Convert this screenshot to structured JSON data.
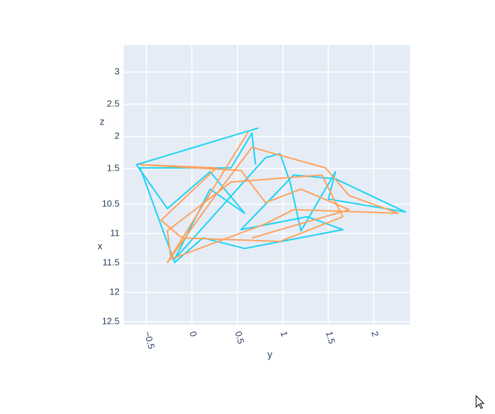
{
  "chart_data": {
    "type": "line3d",
    "x_label": "x",
    "y_label": "y",
    "z_label": "z",
    "xlim": [
      10.2,
      12.55
    ],
    "ylim": [
      -0.75,
      2.4
    ],
    "zlim": [
      1.22,
      3.42
    ],
    "xticks": [
      10.5,
      11,
      11.5,
      12,
      12.5
    ],
    "yticks": [
      {
        "value": -0.5,
        "label": "−0.5"
      },
      0,
      0.5,
      1,
      1.5,
      2
    ],
    "zticks": [
      1.5,
      2,
      2.5,
      3
    ],
    "grid": true,
    "series": [
      {
        "color": "#19d3f3",
        "x": [
          10.43,
          10.43,
          10.88,
          10.43,
          10.96,
          10.55,
          11.74,
          10.43,
          10.43,
          10.43,
          11.26,
          10.43,
          10.72,
          10.9,
          10.94,
          10.43,
          10.43,
          11.24,
          11.02,
          11.24,
          11.56,
          11.38,
          11.8,
          10.43,
          10.43,
          10.43,
          10.43
        ],
        "y": [
          0.73,
          -0.61,
          -0.27,
          0.2,
          0.58,
          0.2,
          -0.19,
          0.81,
          0.97,
          1.08,
          1.2,
          1.58,
          1.5,
          2.2,
          2.35,
          1.58,
          1.12,
          0.54,
          1.27,
          1.66,
          0.58,
          0.12,
          -0.19,
          -0.57,
          0.43,
          0.66,
          0.7
        ],
        "z": [
          2.34,
          1.77,
          1.5,
          1.66,
          1.5,
          1.5,
          1.5,
          1.88,
          1.94,
          1.5,
          1.5,
          1.66,
          1.5,
          1.5,
          1.5,
          1.55,
          1.61,
          1.5,
          1.5,
          1.5,
          1.5,
          1.5,
          1.5,
          1.72,
          1.72,
          2.26,
          1.77
        ]
      },
      {
        "color": "#ffa15a",
        "x": [
          10.43,
          11.8,
          10.78,
          10.43,
          10.43,
          10.66,
          10.96,
          10.9,
          11.14,
          11.74,
          11.26,
          10.43,
          10.43,
          11.02,
          11.44,
          11.38,
          11.08,
          10.43,
          10.43,
          10.43,
          10.78,
          10.55,
          10.9,
          11.38
        ],
        "y": [
          0.62,
          -0.27,
          0.2,
          0.66,
          1.47,
          1.73,
          2.27,
          1.12,
          0.81,
          -0.23,
          -0.27,
          0.43,
          1.43,
          1.66,
          0.97,
          -0.11,
          -0.34,
          0.27,
          -0.57,
          0.54,
          0.81,
          1.2,
          1.73,
          0.66
        ],
        "z": [
          2.28,
          1.5,
          1.5,
          2.04,
          1.72,
          1.5,
          1.5,
          1.5,
          1.5,
          1.5,
          1.5,
          1.5,
          1.61,
          1.5,
          1.5,
          1.5,
          1.5,
          1.72,
          1.77,
          1.68,
          1.5,
          1.5,
          1.5,
          1.5
        ]
      }
    ]
  }
}
